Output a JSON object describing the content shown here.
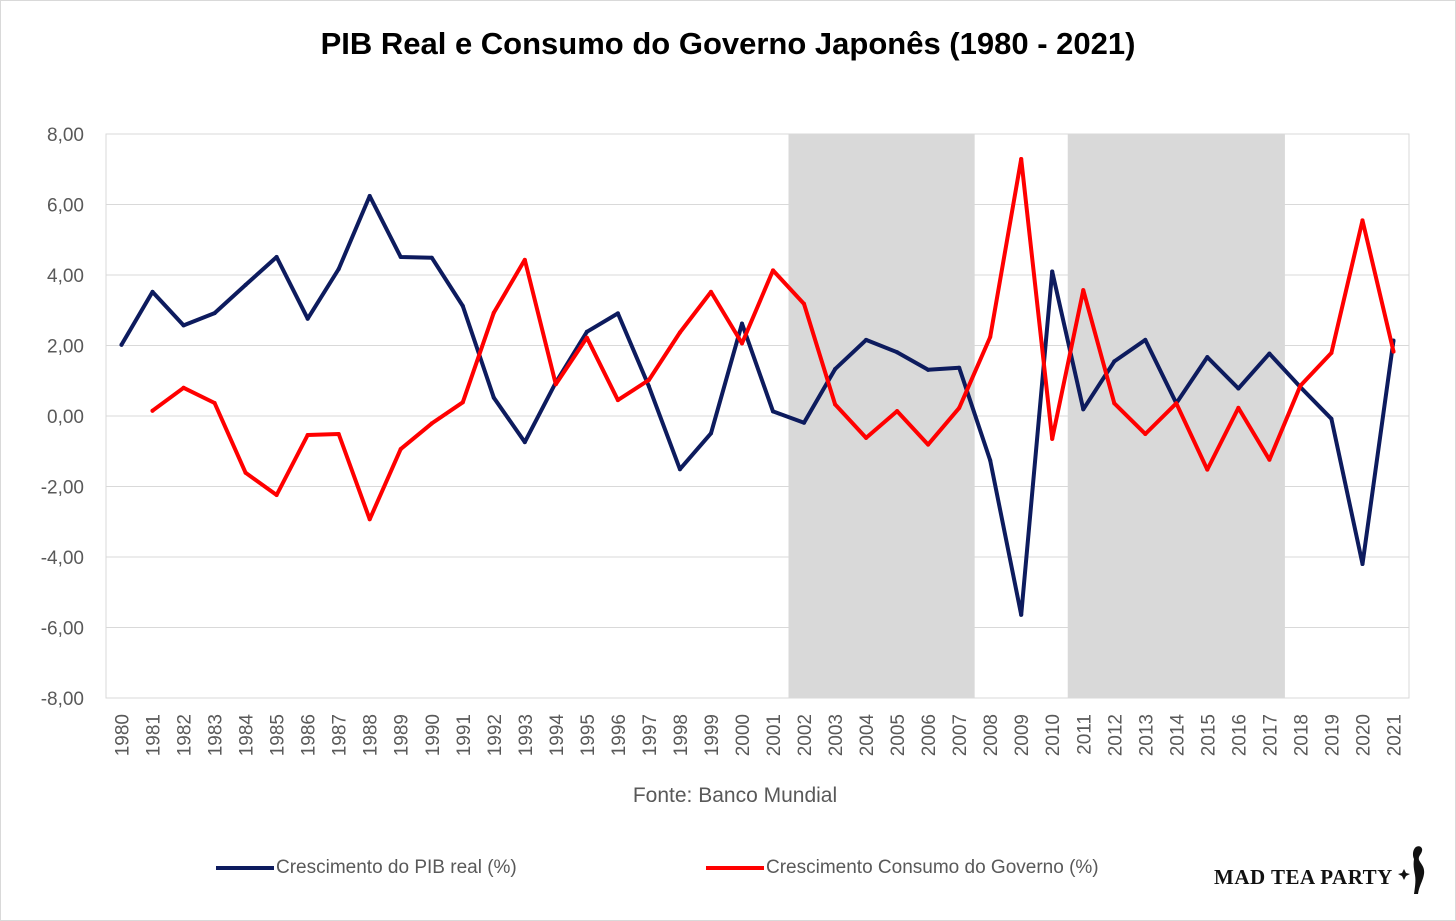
{
  "chart_data": {
    "type": "line",
    "title": "PIB Real e Consumo do Governo Japonês (1980 - 2021)",
    "source": "Fonte: Banco Mundial",
    "x": [
      "1980",
      "1981",
      "1982",
      "1983",
      "1984",
      "1985",
      "1986",
      "1987",
      "1988",
      "1989",
      "1990",
      "1991",
      "1992",
      "1993",
      "1994",
      "1995",
      "1996",
      "1997",
      "1998",
      "1999",
      "2000",
      "2001",
      "2002",
      "2003",
      "2004",
      "2005",
      "2006",
      "2007",
      "2008",
      "2009",
      "2010",
      "2011",
      "2012",
      "2013",
      "2014",
      "2015",
      "2016",
      "2017",
      "2018",
      "2019",
      "2020",
      "2021"
    ],
    "ylim": [
      -8,
      8
    ],
    "yticks": [
      8,
      6,
      4,
      2,
      0,
      -2,
      -4,
      -6,
      -8
    ],
    "ytick_labels": [
      "8,00",
      "6,00",
      "4,00",
      "2,00",
      "0,00",
      "-2,00",
      "-4,00",
      "-6,00",
      "-8,00"
    ],
    "grid": true,
    "legend_position": "bottom",
    "shaded_ranges": [
      [
        "2002",
        "2007"
      ],
      [
        "2011",
        "2017"
      ]
    ],
    "series": [
      {
        "name": "Crescimento do PIB real (%)",
        "color": "#0d1b5e",
        "values": [
          2.02,
          3.52,
          2.57,
          2.92,
          3.72,
          4.51,
          2.76,
          4.17,
          6.24,
          4.51,
          4.49,
          3.12,
          0.52,
          -0.74,
          0.95,
          2.39,
          2.91,
          0.84,
          -1.51,
          -0.49,
          2.62,
          0.13,
          -0.19,
          1.33,
          2.16,
          1.81,
          1.31,
          1.37,
          -1.26,
          -5.64,
          4.1,
          0.19,
          1.55,
          2.16,
          0.36,
          1.67,
          0.78,
          1.77,
          0.82,
          -0.08,
          -4.2,
          2.14
        ]
      },
      {
        "name": "Crescimento Consumo do Governo (%)",
        "color": "#ff0000",
        "values": [
          null,
          0.15,
          0.8,
          0.37,
          -1.61,
          -2.24,
          -0.54,
          -0.51,
          -2.93,
          -0.94,
          -0.21,
          0.39,
          2.93,
          4.43,
          0.9,
          2.22,
          0.45,
          1.02,
          2.37,
          3.52,
          2.06,
          4.13,
          3.18,
          0.33,
          -0.62,
          0.14,
          -0.81,
          0.23,
          2.24,
          7.29,
          -0.65,
          3.57,
          0.36,
          -0.51,
          0.36,
          -1.52,
          0.23,
          -1.24,
          0.86,
          1.79,
          5.55,
          1.83
        ]
      }
    ]
  },
  "brand": {
    "name": "MAD TEA PARTY",
    "icon": "rabbit-icon"
  }
}
